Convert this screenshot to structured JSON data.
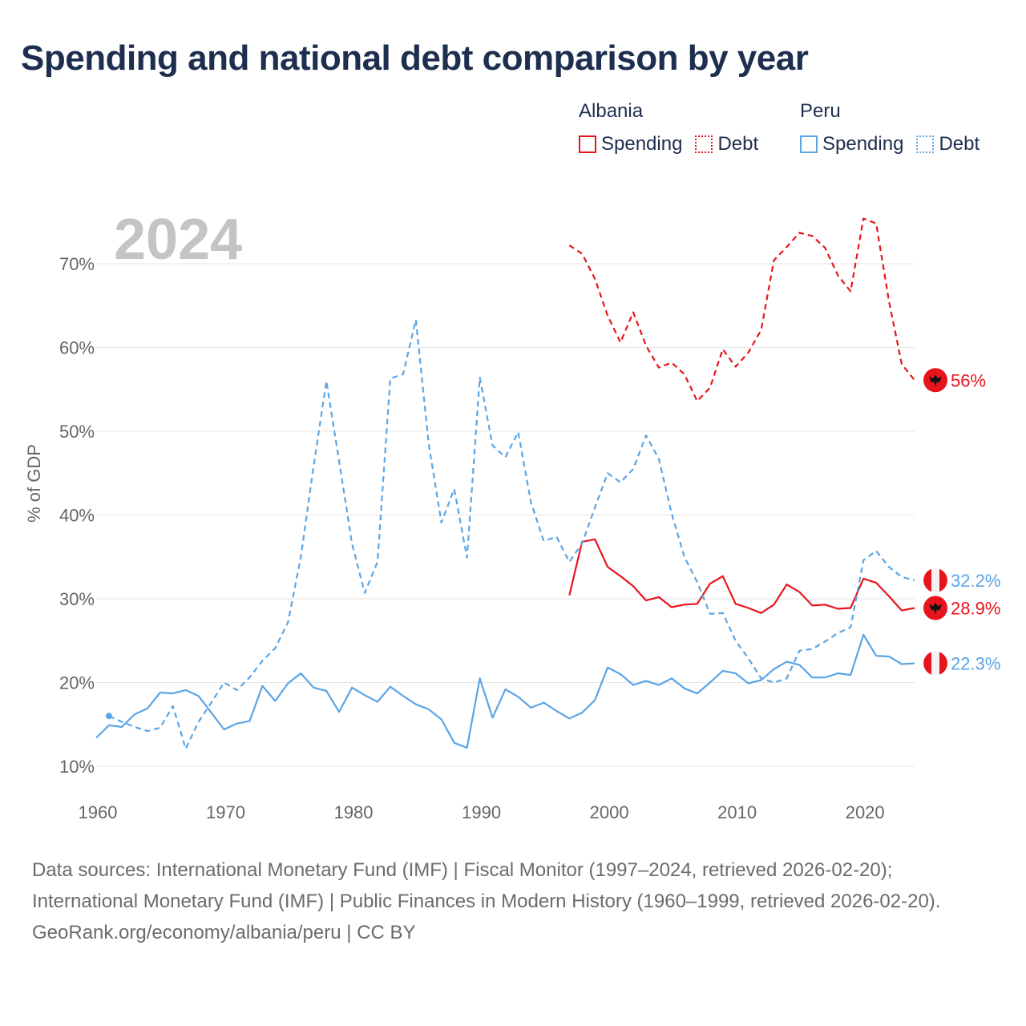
{
  "title": "Spending and national debt comparison by year",
  "legend": {
    "groups": [
      {
        "country": "Albania",
        "items": [
          {
            "label": "Spending",
            "style": "solid",
            "color": "#e8141c"
          },
          {
            "label": "Debt",
            "style": "dotted",
            "color": "#e8141c"
          }
        ]
      },
      {
        "country": "Peru",
        "items": [
          {
            "label": "Spending",
            "style": "solid",
            "color": "#5aa5e6"
          },
          {
            "label": "Debt",
            "style": "dotted",
            "color": "#5aa5e6"
          }
        ]
      }
    ]
  },
  "chart_data": {
    "type": "line",
    "title": "Spending and national debt comparison by year",
    "year_label": "2024",
    "xlabel": "",
    "ylabel": "% of GDP",
    "xlim": [
      1960,
      2024
    ],
    "ylim": [
      10,
      75
    ],
    "x_ticks": [
      1960,
      1970,
      1980,
      1990,
      2000,
      2010,
      2020
    ],
    "y_ticks": [
      10,
      20,
      30,
      40,
      50,
      60,
      70
    ],
    "y_tick_labels": [
      "10%",
      "20%",
      "30%",
      "40%",
      "50%",
      "60%",
      "70%"
    ],
    "series": [
      {
        "name": "Albania Spending",
        "country": "Albania",
        "metric": "Spending",
        "color": "#e8141c",
        "dash": false,
        "end_label": "28.9%",
        "end_value": 28.9,
        "x": [
          1997,
          1998,
          1999,
          2000,
          2001,
          2002,
          2003,
          2004,
          2005,
          2006,
          2007,
          2008,
          2009,
          2010,
          2011,
          2012,
          2013,
          2014,
          2015,
          2016,
          2017,
          2018,
          2019,
          2020,
          2021,
          2022,
          2023,
          2024
        ],
        "values": [
          30.4,
          36.8,
          37.1,
          33.8,
          32.7,
          31.5,
          29.8,
          30.2,
          29.0,
          29.3,
          29.4,
          31.8,
          32.7,
          29.4,
          28.9,
          28.3,
          29.3,
          31.7,
          30.8,
          29.2,
          29.3,
          28.8,
          28.9,
          32.4,
          31.9,
          30.3,
          28.6,
          28.9
        ]
      },
      {
        "name": "Albania Debt",
        "country": "Albania",
        "metric": "Debt",
        "color": "#e8141c",
        "dash": true,
        "end_label": "56%",
        "end_value": 56.1,
        "x": [
          1997,
          1998,
          1999,
          2000,
          2001,
          2002,
          2003,
          2004,
          2005,
          2006,
          2007,
          2008,
          2009,
          2010,
          2011,
          2012,
          2013,
          2014,
          2015,
          2016,
          2017,
          2018,
          2019,
          2020,
          2021,
          2022,
          2023,
          2024
        ],
        "values": [
          72.2,
          71.2,
          68.2,
          63.8,
          60.6,
          64.2,
          60.2,
          57.6,
          58.2,
          56.8,
          53.6,
          55.2,
          59.8,
          57.7,
          59.4,
          62.1,
          70.4,
          72.0,
          73.7,
          73.3,
          71.9,
          68.6,
          66.7,
          75.4,
          74.8,
          65.5,
          58.0,
          56.1
        ]
      },
      {
        "name": "Peru Spending",
        "country": "Peru",
        "metric": "Spending",
        "color": "#5aa5e6",
        "dash": false,
        "end_label": "22.3%",
        "end_value": 22.3,
        "x": [
          1960,
          1961,
          1962,
          1963,
          1964,
          1965,
          1966,
          1967,
          1968,
          1969,
          1970,
          1971,
          1972,
          1973,
          1974,
          1975,
          1976,
          1977,
          1978,
          1979,
          1980,
          1981,
          1982,
          1983,
          1984,
          1985,
          1986,
          1987,
          1988,
          1989,
          1990,
          1991,
          1992,
          1993,
          1994,
          1995,
          1996,
          1997,
          1998,
          1999,
          2000,
          2001,
          2002,
          2003,
          2004,
          2005,
          2006,
          2007,
          2008,
          2009,
          2010,
          2011,
          2012,
          2013,
          2014,
          2015,
          2016,
          2017,
          2018,
          2019,
          2020,
          2021,
          2022,
          2023,
          2024
        ],
        "values": [
          13.4,
          14.9,
          14.7,
          16.2,
          16.9,
          18.8,
          18.7,
          19.1,
          18.4,
          16.4,
          14.4,
          15.1,
          15.4,
          19.6,
          17.8,
          19.9,
          21.1,
          19.4,
          19.0,
          16.5,
          19.4,
          18.5,
          17.7,
          19.5,
          18.4,
          17.4,
          16.8,
          15.6,
          12.8,
          12.2,
          20.5,
          15.8,
          19.2,
          18.3,
          17.0,
          17.6,
          16.6,
          15.7,
          16.4,
          17.9,
          21.8,
          21.0,
          19.7,
          20.2,
          19.7,
          20.5,
          19.3,
          18.7,
          20.0,
          21.4,
          21.1,
          19.9,
          20.3,
          21.6,
          22.5,
          22.1,
          20.6,
          20.6,
          21.1,
          20.9,
          25.7,
          23.2,
          23.1,
          22.2,
          22.3
        ]
      },
      {
        "name": "Peru Debt",
        "country": "Peru",
        "metric": "Debt",
        "color": "#5aa5e6",
        "dash": true,
        "end_label": "32.2%",
        "end_value": 32.2,
        "x": [
          1961,
          1962,
          1963,
          1964,
          1965,
          1966,
          1967,
          1968,
          1969,
          1970,
          1971,
          1972,
          1973,
          1974,
          1975,
          1976,
          1977,
          1978,
          1979,
          1980,
          1981,
          1982,
          1983,
          1984,
          1985,
          1986,
          1987,
          1988,
          1989,
          1990,
          1991,
          1992,
          1993,
          1994,
          1995,
          1996,
          1997,
          1998,
          1999,
          2000,
          2001,
          2002,
          2003,
          2004,
          2005,
          2006,
          2007,
          2008,
          2009,
          2010,
          2011,
          2012,
          2013,
          2014,
          2015,
          2016,
          2017,
          2018,
          2019,
          2020,
          2021,
          2022,
          2023,
          2024
        ],
        "values": [
          16.0,
          15.3,
          14.7,
          14.2,
          14.6,
          17.2,
          12.1,
          15.3,
          17.6,
          20.0,
          19.1,
          20.6,
          22.6,
          24.1,
          27.2,
          35.0,
          45.8,
          56.0,
          46.4,
          36.6,
          30.7,
          34.4,
          56.3,
          56.8,
          63.3,
          48.5,
          39.1,
          43.1,
          34.9,
          56.4,
          48.3,
          46.9,
          49.9,
          41.5,
          36.9,
          37.4,
          34.4,
          36.6,
          40.9,
          45.0,
          43.9,
          45.5,
          49.5,
          46.7,
          40.2,
          35.0,
          32.0,
          28.2,
          28.3,
          25.0,
          22.9,
          20.5,
          20.0,
          20.5,
          23.8,
          24.0,
          24.9,
          25.9,
          26.6,
          34.6,
          35.7,
          33.8,
          32.6,
          32.2
        ]
      }
    ]
  },
  "footer": {
    "sources": "Data sources: International Monetary Fund (IMF) | Fiscal Monitor (1997–2024, retrieved 2026-02-20); International Monetary Fund (IMF) | Public Finances in Modern History (1960–1999, retrieved 2026-02-20).",
    "credit": "GeoRank.org/economy/albania/peru | CC BY"
  }
}
